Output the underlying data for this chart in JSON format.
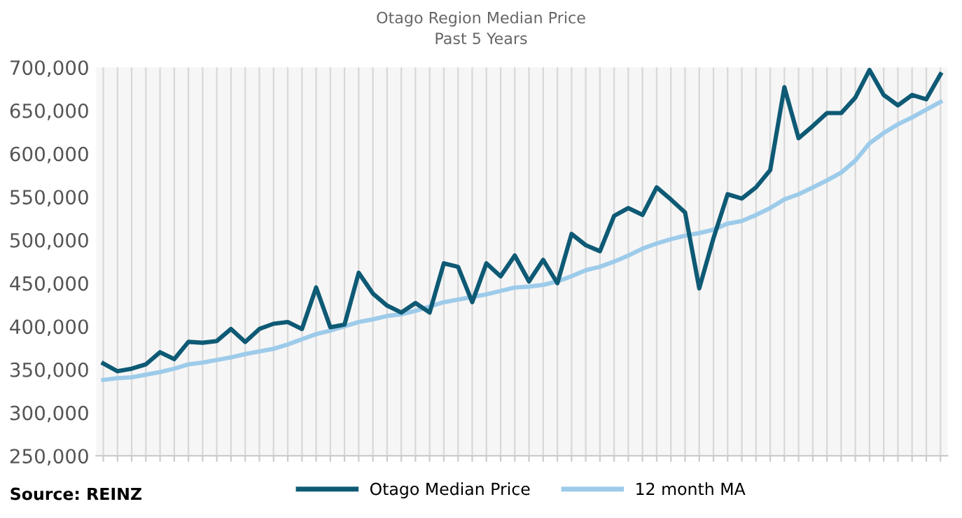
{
  "chart_data": {
    "type": "line",
    "title": "Otago Region Median Price",
    "subtitle": "Past 5 Years",
    "categories": [
      null,
      null,
      null,
      null,
      null,
      null,
      null,
      null,
      null,
      null,
      null,
      null,
      null,
      null,
      null,
      null,
      null,
      null,
      null,
      null,
      null,
      null,
      null,
      null,
      null,
      null,
      null,
      null,
      null,
      null,
      null,
      null,
      null,
      null,
      null,
      null,
      null,
      null,
      null,
      null,
      null,
      null,
      null,
      null,
      null,
      null,
      null,
      null,
      null,
      null,
      null,
      null,
      null,
      null,
      null,
      null,
      null,
      null,
      null,
      null
    ],
    "series": [
      {
        "name": "Otago Median Price",
        "color": "#0e5a75",
        "values": [
          357000,
          348000,
          351000,
          356000,
          370000,
          362000,
          382000,
          381000,
          383000,
          397000,
          382000,
          397000,
          403000,
          405000,
          397000,
          445000,
          399000,
          402000,
          462000,
          438000,
          424000,
          416000,
          427000,
          416000,
          473000,
          469000,
          428000,
          473000,
          458000,
          482000,
          452000,
          477000,
          450000,
          507000,
          494000,
          487000,
          528000,
          537000,
          529000,
          561000,
          547000,
          532000,
          444000,
          502000,
          553000,
          548000,
          561000,
          581000,
          677000,
          618000,
          632000,
          647000,
          647000,
          665000,
          697000,
          668000,
          656000,
          668000,
          663000,
          692000
        ]
      },
      {
        "name": "12 month MA",
        "color": "#9dcbea",
        "values": [
          338000,
          340000,
          341000,
          344000,
          347000,
          351000,
          356000,
          358000,
          361000,
          364000,
          368000,
          371000,
          374000,
          379000,
          385000,
          391000,
          395000,
          400000,
          405000,
          408000,
          412000,
          414000,
          418000,
          423000,
          428000,
          431000,
          434000,
          437000,
          441000,
          445000,
          446000,
          448000,
          452000,
          458000,
          465000,
          469000,
          475000,
          482000,
          490000,
          496000,
          501000,
          505000,
          508000,
          512000,
          519000,
          522000,
          529000,
          537000,
          547000,
          553000,
          561000,
          569000,
          578000,
          592000,
          612000,
          624000,
          634000,
          642000,
          651000,
          660000
        ]
      }
    ],
    "ylim": [
      250000,
      700000
    ],
    "yticks": [
      {
        "value": 250000,
        "label": "250,000"
      },
      {
        "value": 300000,
        "label": "300,000"
      },
      {
        "value": 350000,
        "label": "350,000"
      },
      {
        "value": 400000,
        "label": "400,000"
      },
      {
        "value": 450000,
        "label": "450,000"
      },
      {
        "value": 500000,
        "label": "500,000"
      },
      {
        "value": 550000,
        "label": "550,000"
      },
      {
        "value": 600000,
        "label": "600,000"
      },
      {
        "value": 650000,
        "label": "650,000"
      },
      {
        "value": 700000,
        "label": "700,000"
      }
    ],
    "grid": "x",
    "legend": "bottom",
    "marker": "none",
    "line_style": "solid",
    "annotations": [
      "Source: REINZ"
    ]
  }
}
